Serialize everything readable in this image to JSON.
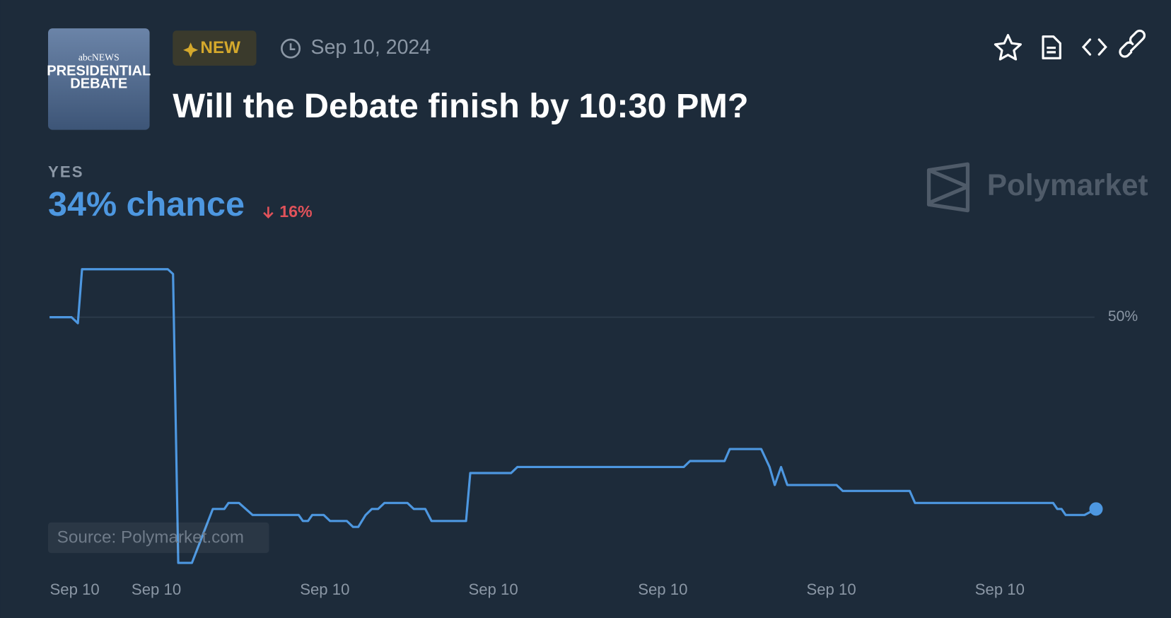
{
  "header": {
    "thumbnail_lines": [
      "abcNEWS",
      "PRESIDENTIAL",
      "DEBATE"
    ],
    "badge": "NEW",
    "date": "Sep 10, 2024",
    "title": "Will the Debate finish by 10:30 PM?"
  },
  "outcome": {
    "label": "YES",
    "chance": "34% chance",
    "change": "16%"
  },
  "brand": "Polymarket",
  "source": "Source: Polymarket.com",
  "chart_data": {
    "type": "line",
    "color": "#4d97e0",
    "grid": true,
    "x": [
      0,
      2.1,
      2.7,
      3.1,
      11.3,
      11.8,
      12.3,
      13.6,
      15.6,
      16.7,
      17.1,
      18.1,
      19.4,
      23.8,
      24.2,
      24.7,
      25.1,
      26.2,
      26.8,
      28.4,
      29.0,
      29.5,
      30.2,
      30.8,
      31.4,
      32.0,
      34.2,
      34.8,
      35.9,
      36.5,
      39.8,
      40.2,
      44.1,
      44.7,
      60.6,
      61.2,
      64.5,
      65.0,
      68.0,
      68.8,
      69.3,
      69.9,
      70.5,
      75.2,
      75.8,
      82.2,
      82.7,
      95.9,
      96.3,
      96.7,
      97.1,
      98.9,
      100
    ],
    "values": [
      50,
      50,
      49.5,
      54,
      54,
      53.6,
      29.5,
      29.5,
      34,
      34,
      34.5,
      34.5,
      33.5,
      33.5,
      33,
      33,
      33.5,
      33.5,
      33,
      33,
      32.5,
      32.5,
      33.5,
      34,
      34,
      34.5,
      34.5,
      34,
      34,
      33,
      33,
      37,
      37,
      37.5,
      37.5,
      38,
      38,
      39,
      39,
      37.5,
      36,
      37.5,
      36,
      36,
      35.5,
      35.5,
      34.5,
      34.5,
      34,
      34,
      33.5,
      33.5,
      34
    ],
    "xlim": [
      0,
      100
    ],
    "ylim": [
      28,
      56
    ],
    "yticks": [
      {
        "value": 50,
        "label": "50%"
      }
    ],
    "xticks": [
      {
        "value": 2.4,
        "label": "Sep 10"
      },
      {
        "value": 10.2,
        "label": "Sep 10"
      },
      {
        "value": 26.3,
        "label": "Sep 10"
      },
      {
        "value": 42.4,
        "label": "Sep 10"
      },
      {
        "value": 58.6,
        "label": "Sep 10"
      },
      {
        "value": 74.7,
        "label": "Sep 10"
      },
      {
        "value": 90.8,
        "label": "Sep 10"
      }
    ]
  }
}
